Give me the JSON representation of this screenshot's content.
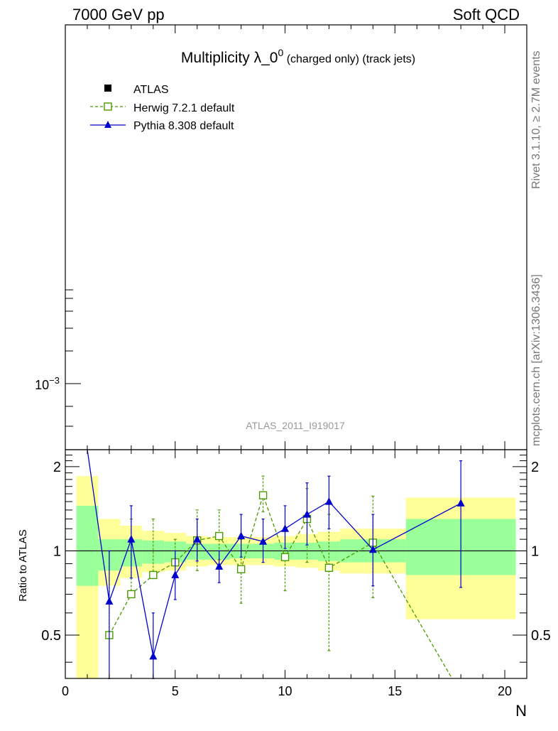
{
  "header": {
    "left": "7000 GeV pp",
    "right": "Soft QCD"
  },
  "title": {
    "main": "Multiplicity λ_0",
    "superscript": "0",
    "suffix": " (charged only) (track jets)"
  },
  "side_labels": {
    "top": "Rivet 3.1.10, ≥ 2.7M events",
    "bottom": "mcplots.cern.ch [arXiv:1306.3436]"
  },
  "watermark": "ATLAS_2011_I919017",
  "colors": {
    "herwig": "#4a9a00",
    "pythia": "#0000cc",
    "band_inner": "#99ff99",
    "band_outer": "#ffff99"
  },
  "chart_data": [
    {
      "type": "line",
      "panel": "main",
      "yscale": "log",
      "ytick_label": "10",
      "ytick_exponent": "−3",
      "legend": [
        {
          "name": "ATLAS",
          "marker": "filled-square",
          "color": "#000000"
        },
        {
          "name": "Herwig 7.2.1 default",
          "marker": "open-square",
          "style": "dashed",
          "color": "#4a9a00"
        },
        {
          "name": "Pythia 8.308 default",
          "marker": "filled-triangle",
          "style": "solid",
          "color": "#0000cc"
        }
      ],
      "legend_position": "top-left"
    },
    {
      "type": "line",
      "panel": "ratio",
      "xlabel": "N",
      "ylabel": "Ratio to ATLAS",
      "xlim": [
        0,
        21
      ],
      "ylim": [
        0.35,
        2.3
      ],
      "xticks": [
        0,
        5,
        10,
        15,
        20
      ],
      "yticks": [
        0.5,
        1,
        2
      ],
      "ytick_labels": [
        "0.5",
        "1",
        "2"
      ],
      "reference_line": 1,
      "bands": [
        {
          "x0": 0.5,
          "x1": 1.5,
          "inner": [
            0.75,
            1.45
          ],
          "outer": [
            0.35,
            1.85
          ]
        },
        {
          "x0": 1.5,
          "x1": 2.5,
          "inner": [
            0.85,
            1.1
          ],
          "outer": [
            0.75,
            1.3
          ]
        },
        {
          "x0": 2.5,
          "x1": 3.5,
          "inner": [
            0.88,
            1.1
          ],
          "outer": [
            0.8,
            1.23
          ]
        },
        {
          "x0": 3.5,
          "x1": 4.5,
          "inner": [
            0.9,
            1.09
          ],
          "outer": [
            0.84,
            1.18
          ]
        },
        {
          "x0": 4.5,
          "x1": 5.5,
          "inner": [
            0.91,
            1.08
          ],
          "outer": [
            0.85,
            1.16
          ]
        },
        {
          "x0": 5.5,
          "x1": 6.5,
          "inner": [
            0.93,
            1.06
          ],
          "outer": [
            0.88,
            1.13
          ]
        },
        {
          "x0": 6.5,
          "x1": 7.5,
          "inner": [
            0.93,
            1.06
          ],
          "outer": [
            0.89,
            1.12
          ]
        },
        {
          "x0": 7.5,
          "x1": 8.5,
          "inner": [
            0.94,
            1.06
          ],
          "outer": [
            0.89,
            1.12
          ]
        },
        {
          "x0": 8.5,
          "x1": 9.5,
          "inner": [
            0.94,
            1.06
          ],
          "outer": [
            0.89,
            1.12
          ]
        },
        {
          "x0": 9.5,
          "x1": 10.5,
          "inner": [
            0.93,
            1.07
          ],
          "outer": [
            0.88,
            1.13
          ]
        },
        {
          "x0": 10.5,
          "x1": 11.5,
          "inner": [
            0.93,
            1.07
          ],
          "outer": [
            0.87,
            1.15
          ]
        },
        {
          "x0": 11.5,
          "x1": 12.5,
          "inner": [
            0.92,
            1.08
          ],
          "outer": [
            0.85,
            1.17
          ]
        },
        {
          "x0": 12.5,
          "x1": 15.5,
          "inner": [
            0.91,
            1.1
          ],
          "outer": [
            0.83,
            1.2
          ]
        },
        {
          "x0": 15.5,
          "x1": 20.5,
          "inner": [
            0.82,
            1.3
          ],
          "outer": [
            0.57,
            1.55
          ]
        }
      ],
      "series": [
        {
          "name": "Herwig 7.2.1 default",
          "x": [
            2,
            3,
            4,
            5,
            6,
            7,
            8,
            9,
            10,
            11,
            12,
            14,
            17.6
          ],
          "y": [
            0.5,
            0.7,
            0.82,
            0.91,
            1.09,
            1.13,
            0.86,
            1.58,
            0.95,
            1.3,
            0.87,
            1.07,
            0.33
          ],
          "yerr_low": [
            0.5,
            0.7,
            0.82,
            0.91,
            0.85,
            0.93,
            0.65,
            1.38,
            0.72,
            0.91,
            0.44,
            0.68,
            null
          ],
          "yerr_high": [
            1.0,
            1.3,
            1.3,
            1.1,
            1.4,
            1.4,
            1.1,
            1.85,
            1.2,
            1.67,
            1.35,
            1.57,
            null
          ]
        },
        {
          "name": "Pythia 8.308 default",
          "x": [
            1,
            2,
            3,
            4,
            5,
            6,
            7,
            8,
            9,
            10,
            11,
            12,
            14,
            18
          ],
          "y": [
            2.5,
            0.66,
            1.1,
            0.42,
            0.82,
            1.1,
            0.88,
            1.13,
            1.08,
            1.2,
            1.35,
            1.5,
            1.01,
            1.48
          ],
          "yerr_low": [
            null,
            0.2,
            0.8,
            0.25,
            0.67,
            0.92,
            0.77,
            0.95,
            0.91,
            1.02,
            1.05,
            1.2,
            0.75,
            0.74
          ],
          "yerr_high": [
            null,
            1.0,
            1.45,
            0.6,
            1.0,
            1.3,
            1.0,
            1.35,
            1.3,
            1.45,
            1.75,
            1.85,
            1.35,
            2.1
          ]
        }
      ]
    }
  ]
}
